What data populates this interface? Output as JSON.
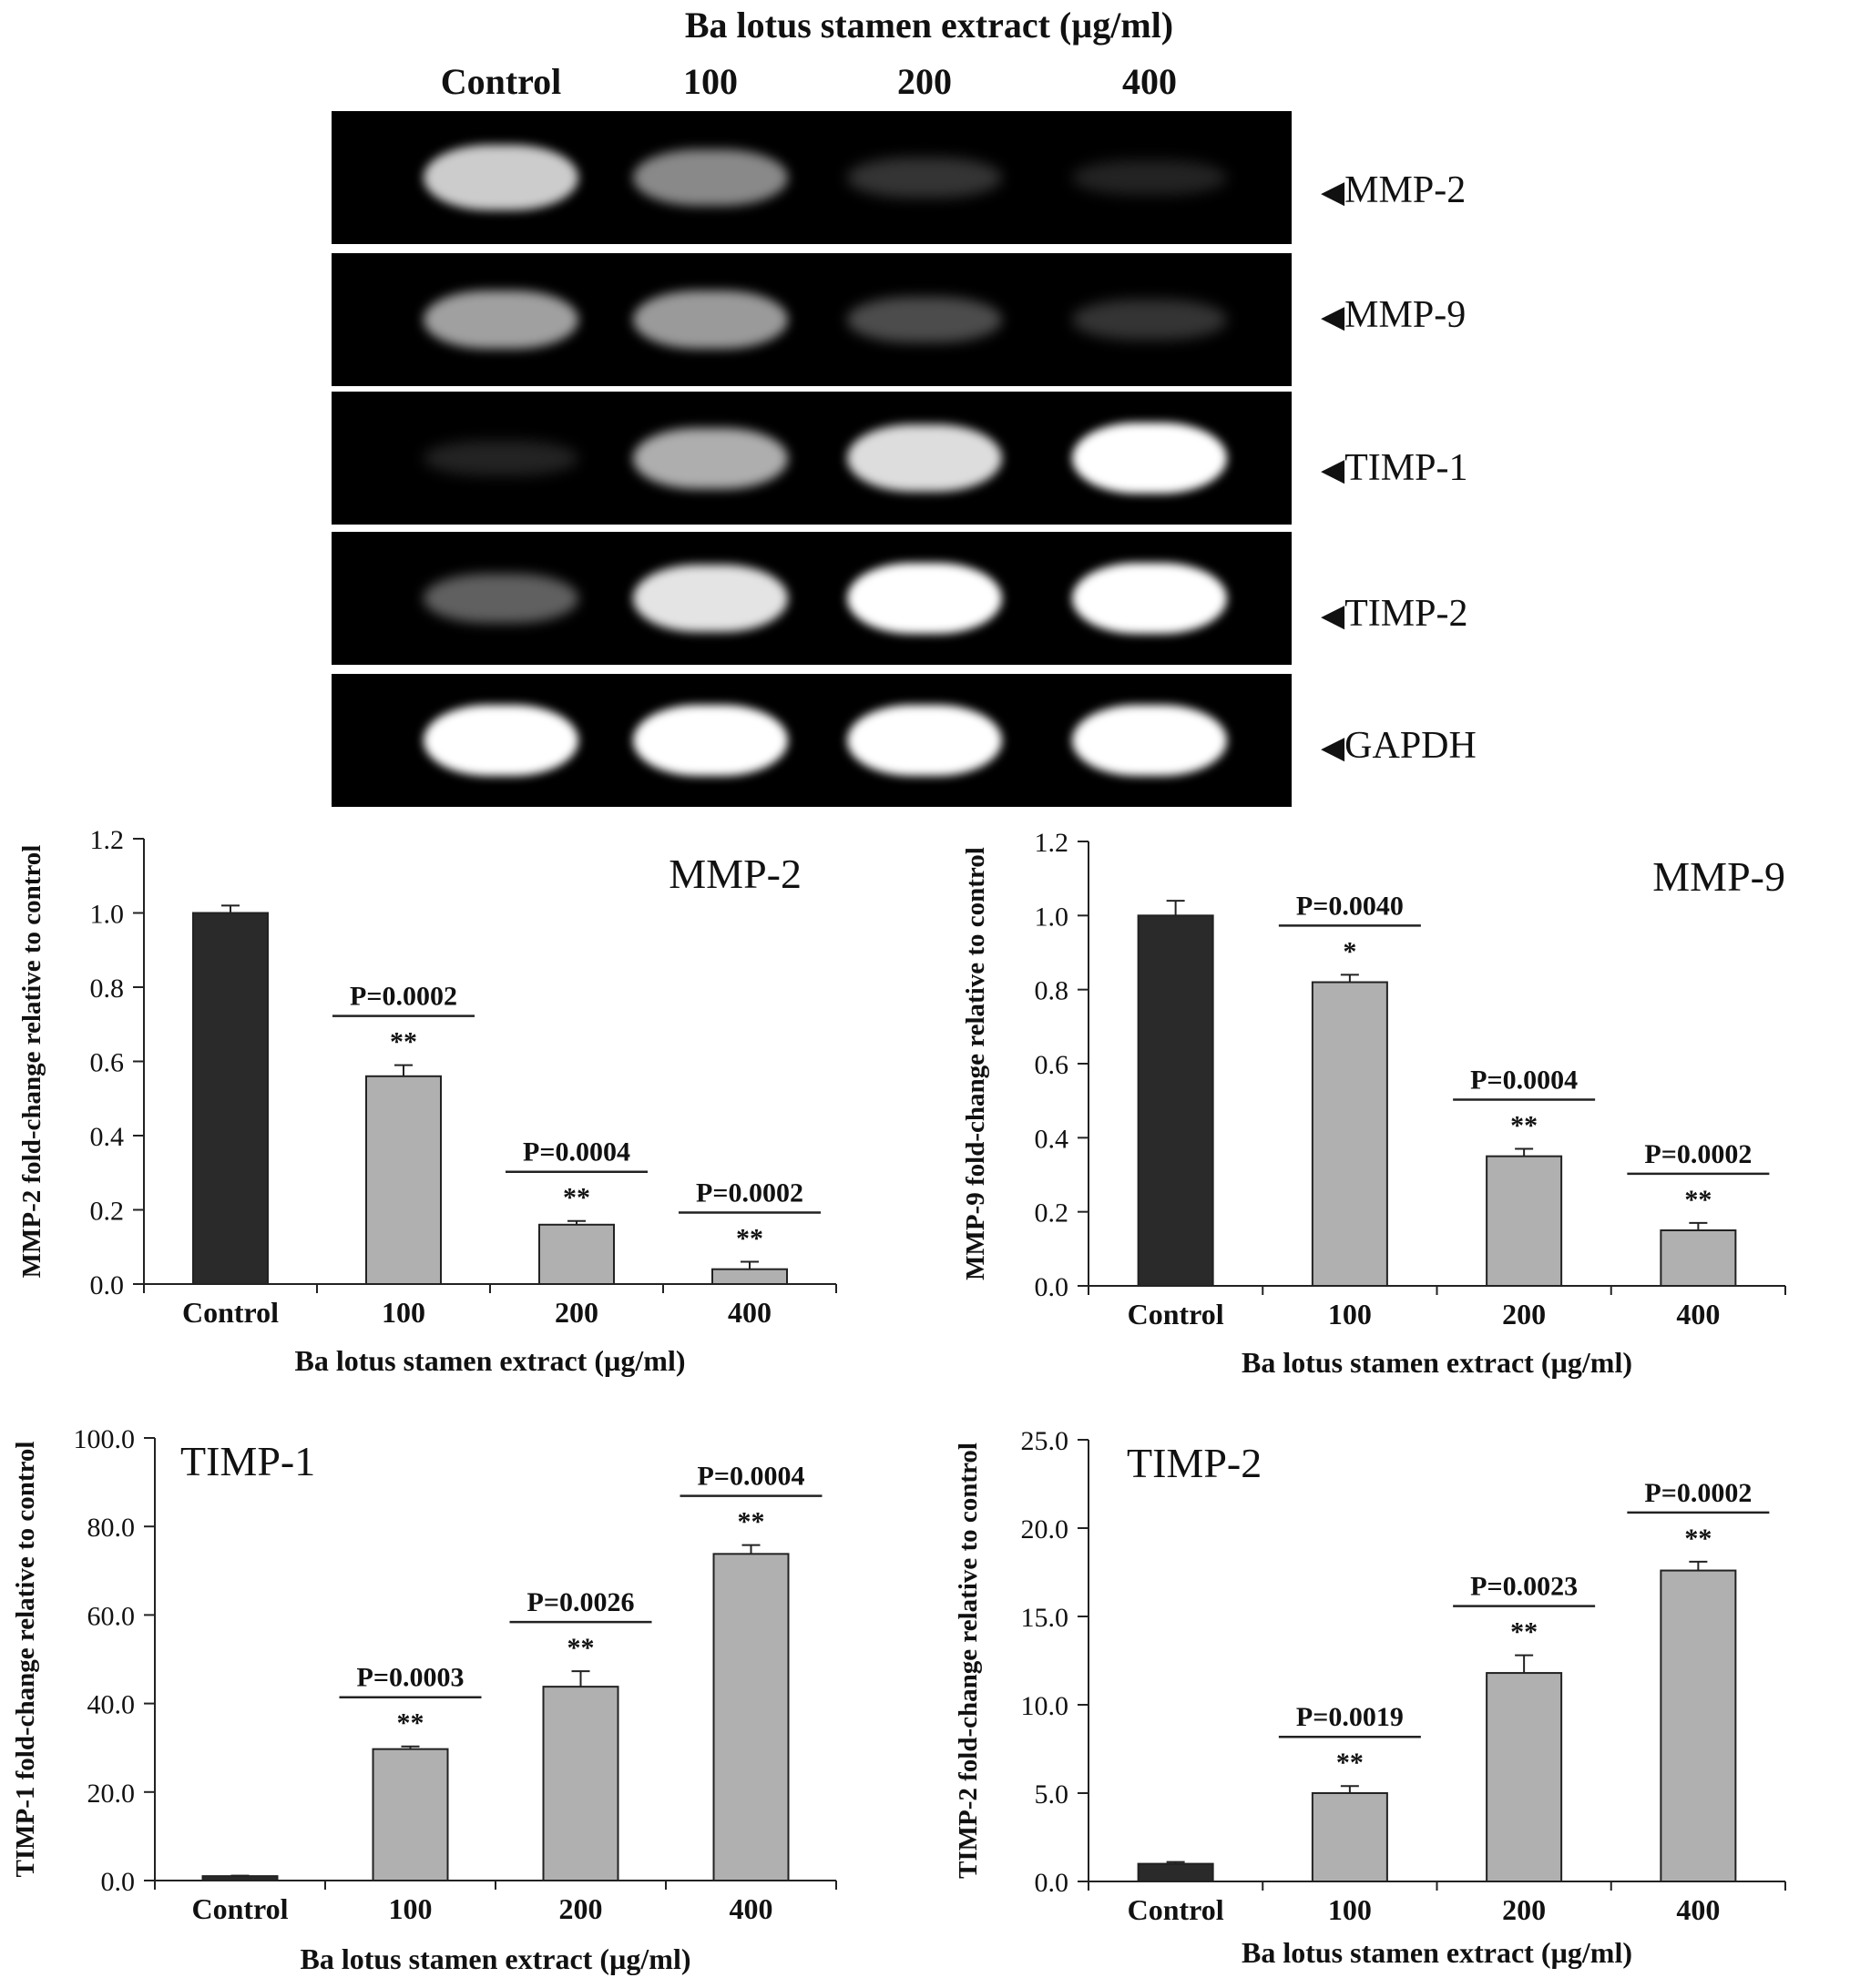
{
  "gel": {
    "title": "Ba lotus stamen extract (µg/ml)",
    "lanes": [
      "Control",
      "100",
      "200",
      "400"
    ],
    "rows": [
      {
        "label": "MMP-2",
        "intensity": [
          0.85,
          0.62,
          0.22,
          0.1
        ]
      },
      {
        "label": "MMP-9",
        "intensity": [
          0.7,
          0.68,
          0.35,
          0.22
        ]
      },
      {
        "label": "TIMP-1",
        "intensity": [
          0.1,
          0.75,
          0.9,
          1.0
        ]
      },
      {
        "label": "TIMP-2",
        "intensity": [
          0.45,
          0.92,
          1.0,
          1.0
        ]
      },
      {
        "label": "GAPDH",
        "intensity": [
          1.0,
          1.0,
          1.0,
          1.0
        ]
      }
    ]
  },
  "chart_data": [
    {
      "type": "bar",
      "title": "MMP-2",
      "xlabel": "Ba lotus stamen extract (µg/ml)",
      "ylabel": "MMP-2 fold-change relative to control",
      "categories": [
        "Control",
        "100",
        "200",
        "400"
      ],
      "values": [
        1.0,
        0.56,
        0.16,
        0.04
      ],
      "errors": [
        0.02,
        0.03,
        0.01,
        0.02
      ],
      "ylim": [
        0,
        1.2
      ],
      "yticks": [
        "0.0",
        "0.2",
        "0.4",
        "0.6",
        "0.8",
        "1.0",
        "1.2"
      ],
      "pvalues": [
        "",
        "P=0.0002",
        "P=0.0004",
        "P=0.0002"
      ],
      "stars": [
        "",
        "**",
        "**",
        "**"
      ],
      "bar_colors": [
        "#2a2a2a",
        "#b0b0b0",
        "#b0b0b0",
        "#b0b0b0"
      ]
    },
    {
      "type": "bar",
      "title": "MMP-9",
      "xlabel": "Ba lotus stamen extract (µg/ml)",
      "ylabel": "MMP-9 fold-change relative to control",
      "categories": [
        "Control",
        "100",
        "200",
        "400"
      ],
      "values": [
        1.0,
        0.82,
        0.35,
        0.15
      ],
      "errors": [
        0.04,
        0.02,
        0.02,
        0.02
      ],
      "ylim": [
        0,
        1.2
      ],
      "yticks": [
        "0.0",
        "0.2",
        "0.4",
        "0.6",
        "0.8",
        "1.0",
        "1.2"
      ],
      "pvalues": [
        "",
        "P=0.0040",
        "P=0.0004",
        "P=0.0002"
      ],
      "stars": [
        "",
        "*",
        "**",
        "**"
      ],
      "bar_colors": [
        "#2a2a2a",
        "#b0b0b0",
        "#b0b0b0",
        "#b0b0b0"
      ]
    },
    {
      "type": "bar",
      "title": "TIMP-1",
      "xlabel": "Ba lotus stamen extract (µg/ml)",
      "ylabel": "TIMP-1 fold-change relative to control",
      "categories": [
        "Control",
        "100",
        "200",
        "400"
      ],
      "values": [
        1.0,
        29.7,
        43.8,
        73.8
      ],
      "errors": [
        0.1,
        0.6,
        3.5,
        2.0
      ],
      "ylim": [
        0,
        100
      ],
      "yticks": [
        "0.0",
        "20.0",
        "40.0",
        "60.0",
        "80.0",
        "100.0"
      ],
      "pvalues": [
        "",
        "P=0.0003",
        "P=0.0026",
        "P=0.0004"
      ],
      "stars": [
        "",
        "**",
        "**",
        "**"
      ],
      "bar_colors": [
        "#2a2a2a",
        "#b0b0b0",
        "#b0b0b0",
        "#b0b0b0"
      ]
    },
    {
      "type": "bar",
      "title": "TIMP-2",
      "xlabel": "Ba lotus stamen extract (µg/ml)",
      "ylabel": "TIMP-2 fold-change relative to control",
      "categories": [
        "Control",
        "100",
        "200",
        "400"
      ],
      "values": [
        1.0,
        5.0,
        11.8,
        17.6
      ],
      "errors": [
        0.1,
        0.4,
        1.0,
        0.5
      ],
      "ylim": [
        0,
        25
      ],
      "yticks": [
        "0.0",
        "5.0",
        "10.0",
        "15.0",
        "20.0",
        "25.0"
      ],
      "pvalues": [
        "",
        "P=0.0019",
        "P=0.0023",
        "P=0.0002"
      ],
      "stars": [
        "",
        "**",
        "**",
        "**"
      ],
      "bar_colors": [
        "#2a2a2a",
        "#b0b0b0",
        "#b0b0b0",
        "#b0b0b0"
      ]
    }
  ]
}
